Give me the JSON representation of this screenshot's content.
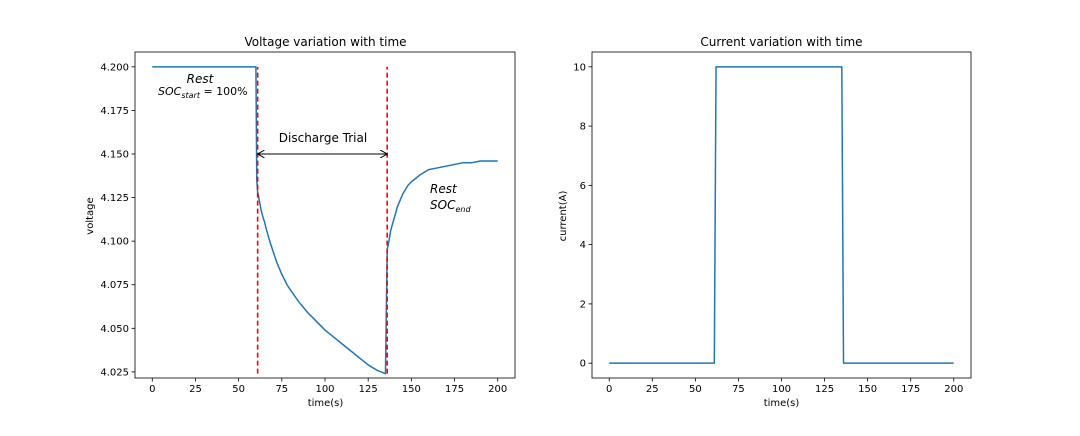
{
  "chart_data": [
    {
      "type": "line",
      "title": "Voltage variation with time",
      "xlabel": "time(s)",
      "ylabel": "voltage",
      "xlim": [
        -10,
        210
      ],
      "ylim": [
        4.0215,
        4.2085
      ],
      "xticks": [
        0,
        25,
        50,
        75,
        100,
        125,
        150,
        175,
        200
      ],
      "xtick_labels": [
        "0",
        "25",
        "50",
        "75",
        "100",
        "125",
        "150",
        "175",
        "200"
      ],
      "yticks": [
        4.025,
        4.05,
        4.075,
        4.1,
        4.125,
        4.15,
        4.175,
        4.2
      ],
      "ytick_labels": [
        "4.025",
        "4.050",
        "4.075",
        "4.100",
        "4.125",
        "4.150",
        "4.175",
        "4.200"
      ],
      "grid": false,
      "series": [
        {
          "color": "#1f77b4",
          "x": [
            0,
            10,
            20,
            30,
            40,
            50,
            60,
            60.5,
            61,
            61.5,
            62,
            63,
            64,
            65,
            66,
            68,
            70,
            72,
            75,
            78,
            80,
            85,
            90,
            95,
            100,
            105,
            110,
            115,
            120,
            125,
            130,
            135,
            136,
            137,
            138,
            140,
            142,
            145,
            148,
            150,
            155,
            160,
            165,
            170,
            175,
            180,
            185,
            190,
            195,
            200
          ],
          "y": [
            4.2,
            4.2,
            4.2,
            4.2,
            4.2,
            4.2,
            4.2,
            4.135,
            4.128,
            4.126,
            4.123,
            4.118,
            4.114,
            4.111,
            4.107,
            4.1,
            4.094,
            4.088,
            4.081,
            4.075,
            4.072,
            4.065,
            4.059,
            4.054,
            4.049,
            4.045,
            4.041,
            4.037,
            4.033,
            4.029,
            4.026,
            4.024,
            4.095,
            4.1,
            4.106,
            4.113,
            4.12,
            4.127,
            4.132,
            4.134,
            4.138,
            4.141,
            4.142,
            4.143,
            4.144,
            4.145,
            4.145,
            4.146,
            4.146,
            4.146
          ]
        }
      ],
      "vlines": [
        {
          "x": 61,
          "ymin": 4.024,
          "ymax": 4.2,
          "color": "#ff0000",
          "style": "dashed"
        },
        {
          "x": 136,
          "ymin": 4.024,
          "ymax": 4.2,
          "color": "#ff0000",
          "style": "dashed"
        }
      ],
      "arrow": {
        "x1": 61,
        "x2": 136,
        "y": 4.15
      },
      "annotations": {
        "discharge": "Discharge Trial",
        "rest_start": "Rest",
        "soc_start_base": "SOC",
        "soc_start_sub": "start",
        "soc_start_value": " = 100%",
        "rest_end": "Rest",
        "soc_end_base": "SOC",
        "soc_end_sub": "end"
      }
    },
    {
      "type": "line",
      "title": "Current variation with time",
      "xlabel": "time(s)",
      "ylabel": "current(A)",
      "xlim": [
        -10,
        210
      ],
      "ylim": [
        -0.5,
        10.5
      ],
      "xticks": [
        0,
        25,
        50,
        75,
        100,
        125,
        150,
        175,
        200
      ],
      "xtick_labels": [
        "0",
        "25",
        "50",
        "75",
        "100",
        "125",
        "150",
        "175",
        "200"
      ],
      "yticks": [
        0,
        2,
        4,
        6,
        8,
        10
      ],
      "ytick_labels": [
        "0",
        "2",
        "4",
        "6",
        "8",
        "10"
      ],
      "grid": false,
      "series": [
        {
          "color": "#1f77b4",
          "x": [
            0,
            61,
            62,
            135,
            136,
            200
          ],
          "y": [
            0,
            0,
            10,
            10,
            0,
            0
          ]
        }
      ]
    }
  ]
}
